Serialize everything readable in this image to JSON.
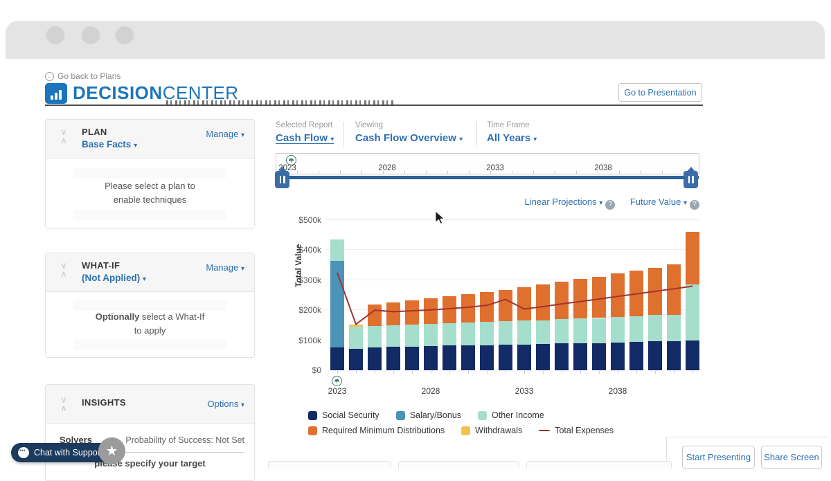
{
  "header": {
    "back_link": "Go back to Plans",
    "logo_bold": "DECISION",
    "logo_light": "CENTER",
    "go_to_presentation": "Go to Presentation"
  },
  "sidebar": {
    "plan": {
      "title": "PLAN",
      "action": "Manage",
      "selection": "Base Facts",
      "message_line1": "Please select a plan to",
      "message_line2": "enable techniques"
    },
    "whatif": {
      "title": "WHAT-IF",
      "action": "Manage",
      "selection": "(Not Applied)",
      "message_bold": "Optionally",
      "message_rest": " select a What-If",
      "message_line2": "to apply"
    },
    "insights": {
      "title": "INSIGHTS",
      "action": "Options",
      "solvers_label": "Solvers",
      "solvers_status": "Probability of Success: Not Set",
      "solvers_hint": "please specify your target"
    }
  },
  "report_bar": {
    "selected_report_label": "Selected Report",
    "selected_report_value": "Cash Flow",
    "viewing_label": "Viewing",
    "viewing_value": "Cash Flow Overview",
    "time_frame_label": "Time Frame",
    "time_frame_value": "All Years"
  },
  "timeline": {
    "tick_labels": [
      "2023",
      "2028",
      "2033",
      "2038"
    ],
    "tick_offsets": [
      16,
      160,
      316,
      472
    ]
  },
  "chart_controls": {
    "projection": "Linear Projections",
    "value_type": "Future Value"
  },
  "chart_data": {
    "type": "bar",
    "stacked": true,
    "ylabel": "Total Value",
    "units": "USD thousands",
    "ylim": [
      0,
      500
    ],
    "ytick_labels": [
      "$0",
      "$100k",
      "$200k",
      "$300k",
      "$400k",
      "$500k"
    ],
    "x": [
      2023,
      2024,
      2025,
      2026,
      2027,
      2028,
      2029,
      2030,
      2031,
      2032,
      2033,
      2034,
      2035,
      2036,
      2037,
      2038,
      2039,
      2040,
      2041,
      2042
    ],
    "xtick_labels": [
      "2023",
      "2028",
      "2033",
      "2038"
    ],
    "xtick_indices": [
      0,
      5,
      10,
      15
    ],
    "grid": true,
    "legend_position": "bottom",
    "series": [
      {
        "name": "Social Security",
        "color": "#122a66",
        "values": [
          75,
          72,
          77,
          78,
          79,
          80,
          82,
          83,
          84,
          86,
          86,
          88,
          89,
          90,
          91,
          93,
          94,
          97,
          97,
          100
        ]
      },
      {
        "name": "Salary/Bonus",
        "color": "#4b94b7",
        "values": [
          290,
          0,
          0,
          0,
          0,
          0,
          0,
          0,
          0,
          0,
          0,
          0,
          0,
          0,
          0,
          0,
          0,
          0,
          0,
          0
        ]
      },
      {
        "name": "Other Income",
        "color": "#a6decd",
        "values": [
          70,
          73,
          71,
          72,
          73,
          74,
          74,
          76,
          77,
          78,
          80,
          79,
          81,
          82,
          83,
          84,
          85,
          87,
          88,
          185
        ]
      },
      {
        "name": "Required Minimum Distributions",
        "color": "#e0702d",
        "values": [
          0,
          0,
          72,
          77,
          81,
          86,
          91,
          95,
          100,
          104,
          111,
          118,
          125,
          132,
          137,
          145,
          153,
          158,
          167,
          177
        ]
      },
      {
        "name": "Withdrawals",
        "color": "#f2c14e",
        "values": [
          0,
          8,
          0,
          0,
          0,
          0,
          0,
          0,
          0,
          0,
          0,
          0,
          0,
          0,
          0,
          0,
          0,
          0,
          0,
          0
        ]
      }
    ],
    "line_series": {
      "name": "Total Expenses",
      "color": "#a33431",
      "values": [
        325,
        153,
        200,
        195,
        198,
        201,
        205,
        210,
        216,
        236,
        204,
        212,
        221,
        229,
        237,
        246,
        254,
        263,
        271,
        280
      ]
    }
  },
  "legend": [
    {
      "label": "Social Security",
      "color": "#122a66",
      "type": "square"
    },
    {
      "label": "Salary/Bonus",
      "color": "#4b94b7",
      "type": "square"
    },
    {
      "label": "Other Income",
      "color": "#a6decd",
      "type": "square"
    },
    {
      "label": "Required Minimum Distributions",
      "color": "#e0702d",
      "type": "square"
    },
    {
      "label": "Withdrawals",
      "color": "#f2c14e",
      "type": "square"
    },
    {
      "label": "Total Expenses",
      "color": "#a33431",
      "type": "line"
    }
  ],
  "footer": {
    "chat": "Chat with Support",
    "start_presenting": "Start Presenting",
    "share_screen": "Share Screen"
  }
}
